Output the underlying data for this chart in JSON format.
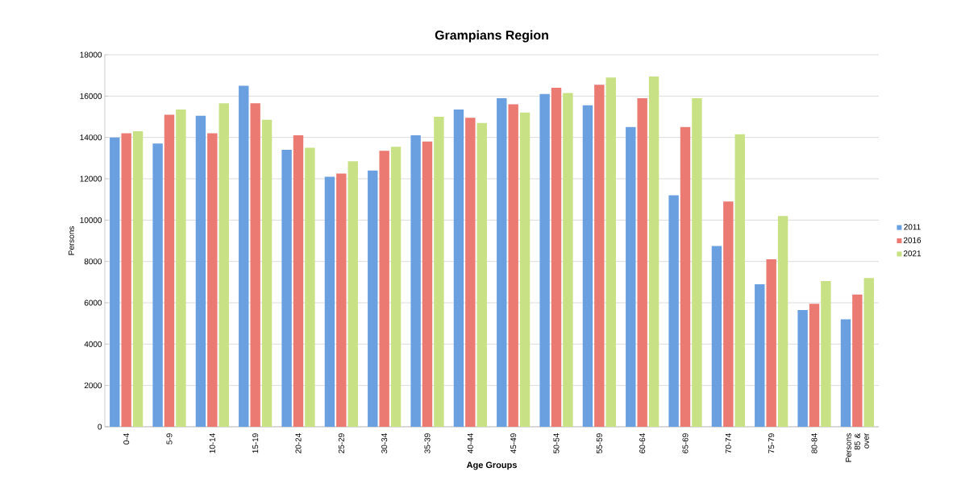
{
  "chart_data": {
    "type": "bar",
    "title": "Grampians Region",
    "xlabel": "Age Groups",
    "ylabel": "Persons",
    "categories": [
      "0-4",
      "5-9",
      "10-14",
      "15-19",
      "20-24",
      "25-29",
      "30-34",
      "35-39",
      "40-44",
      "45-49",
      "50-54",
      "55-59",
      "60-64",
      "65-69",
      "70-74",
      "75-79",
      "80-84",
      "Persons 85 & over"
    ],
    "series": [
      {
        "name": "2011",
        "color": "#6a9fe0",
        "values": [
          14000,
          13700,
          15050,
          16500,
          13400,
          12100,
          12400,
          14100,
          15350,
          15900,
          16100,
          15550,
          14500,
          11200,
          8750,
          6900,
          5650,
          5200
        ]
      },
      {
        "name": "2016",
        "color": "#ea7a72",
        "values": [
          14200,
          15100,
          14200,
          15650,
          14100,
          12250,
          13350,
          13800,
          14950,
          15600,
          16400,
          16550,
          15900,
          14500,
          10900,
          8100,
          5950,
          6400
        ]
      },
      {
        "name": "2021",
        "color": "#c8e184",
        "values": [
          14300,
          15350,
          15650,
          14850,
          13500,
          12850,
          13550,
          15000,
          14700,
          15200,
          16150,
          16900,
          16950,
          15900,
          14150,
          10200,
          7050,
          7200
        ]
      }
    ],
    "ylim": [
      0,
      18000
    ],
    "yticks": [
      0,
      2000,
      4000,
      6000,
      8000,
      10000,
      12000,
      14000,
      16000,
      18000
    ],
    "grid": "y",
    "legend": "right"
  }
}
